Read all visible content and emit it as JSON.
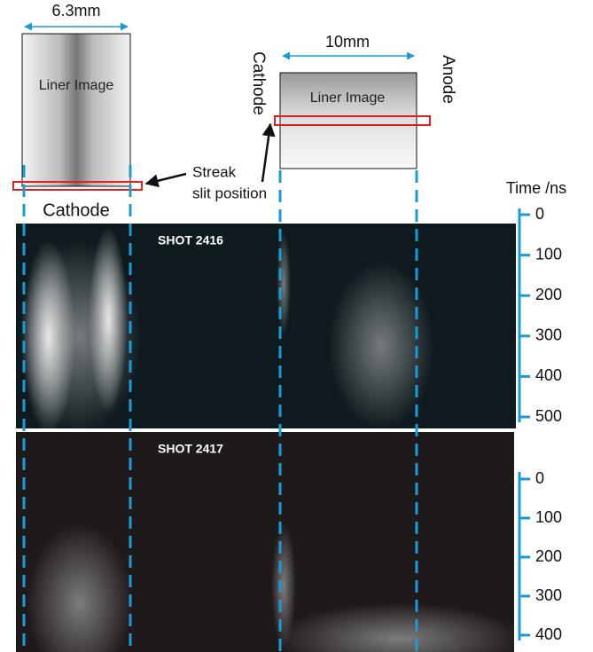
{
  "left_liner": {
    "width_label": "6.3mm",
    "label": "Liner Image",
    "electrode": "Cathode"
  },
  "right_liner": {
    "width_label": "10mm",
    "label": "Liner Image",
    "cathode": "Cathode",
    "anode": "Anode"
  },
  "annotation": {
    "line1": "Streak",
    "line2": "slit position"
  },
  "time_axis": {
    "title": "Time /ns"
  },
  "shots": [
    {
      "label": "SHOT 2416",
      "ticks": [
        0,
        100,
        200,
        300,
        400,
        500
      ]
    },
    {
      "label": "SHOT 2417",
      "ticks": [
        0,
        100,
        200,
        300,
        400
      ]
    }
  ]
}
